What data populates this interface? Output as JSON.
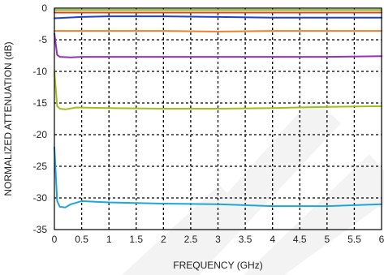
{
  "chart_data": {
    "type": "line",
    "xlabel": "FREQUENCY (GHz)",
    "ylabel": "NORMALIZED ATTENUATION (dB)",
    "xlim": [
      0,
      6
    ],
    "ylim": [
      -35,
      0
    ],
    "xticks": [
      0,
      0.5,
      1,
      1.5,
      2,
      2.5,
      3,
      3.5,
      4,
      4.5,
      5,
      5.5,
      6
    ],
    "xtick_labels": [
      "0",
      "0.5",
      "1",
      "1.5",
      "2",
      "2.5",
      "3",
      "3.5",
      "4",
      "4.5",
      "5",
      "5.5",
      "6"
    ],
    "yticks": [
      0,
      -5,
      -10,
      -15,
      -20,
      -25,
      -30,
      -35
    ],
    "ytick_labels": [
      "0",
      "-5",
      "-10",
      "-15",
      "-20",
      "-25",
      "-30",
      "-35"
    ],
    "grid": true,
    "legend": "none",
    "series": [
      {
        "color": "#7ab317",
        "x": [
          0,
          0.5,
          1,
          2,
          3,
          4,
          5,
          6
        ],
        "y": [
          -0.3,
          -0.3,
          -0.3,
          -0.3,
          -0.3,
          -0.3,
          -0.3,
          -0.3
        ]
      },
      {
        "color": "#e0401a",
        "x": [
          0,
          0.5,
          1,
          2,
          3,
          4,
          5,
          6
        ],
        "y": [
          -0.7,
          -0.7,
          -0.7,
          -0.7,
          -0.7,
          -0.7,
          -0.7,
          -0.7
        ]
      },
      {
        "color": "#1f3fd1",
        "x": [
          0,
          0.5,
          1,
          2,
          3,
          4,
          5,
          6
        ],
        "y": [
          -1.6,
          -1.4,
          -1.3,
          -1.3,
          -1.4,
          -1.5,
          -1.5,
          -1.5
        ]
      },
      {
        "color": "#f08020",
        "x": [
          0,
          0.5,
          1,
          2,
          3,
          4,
          5,
          6
        ],
        "y": [
          -3.6,
          -3.6,
          -3.6,
          -3.6,
          -3.7,
          -3.6,
          -3.6,
          -3.6
        ]
      },
      {
        "color": "#9b2fc0",
        "x": [
          0,
          0.05,
          0.1,
          0.3,
          0.5,
          1,
          2,
          3,
          4,
          5,
          6
        ],
        "y": [
          -4,
          -7.4,
          -7.7,
          -7.8,
          -7.7,
          -7.7,
          -7.7,
          -7.7,
          -7.7,
          -7.7,
          -7.6
        ]
      },
      {
        "color": "#9ec21c",
        "x": [
          0,
          0.05,
          0.1,
          0.2,
          0.4,
          1,
          2,
          3,
          4,
          5,
          6
        ],
        "y": [
          -10,
          -15.5,
          -15.9,
          -16.0,
          -15.7,
          -15.8,
          -15.9,
          -15.9,
          -15.8,
          -15.6,
          -15.5
        ]
      },
      {
        "color": "#1fa6d8",
        "x": [
          0,
          0.05,
          0.1,
          0.2,
          0.3,
          0.5,
          1,
          2,
          3,
          4,
          5,
          6
        ],
        "y": [
          -22,
          -30.5,
          -31.4,
          -31.5,
          -31.0,
          -30.5,
          -30.7,
          -30.9,
          -31.0,
          -31.3,
          -31.3,
          -31.0
        ]
      }
    ]
  }
}
